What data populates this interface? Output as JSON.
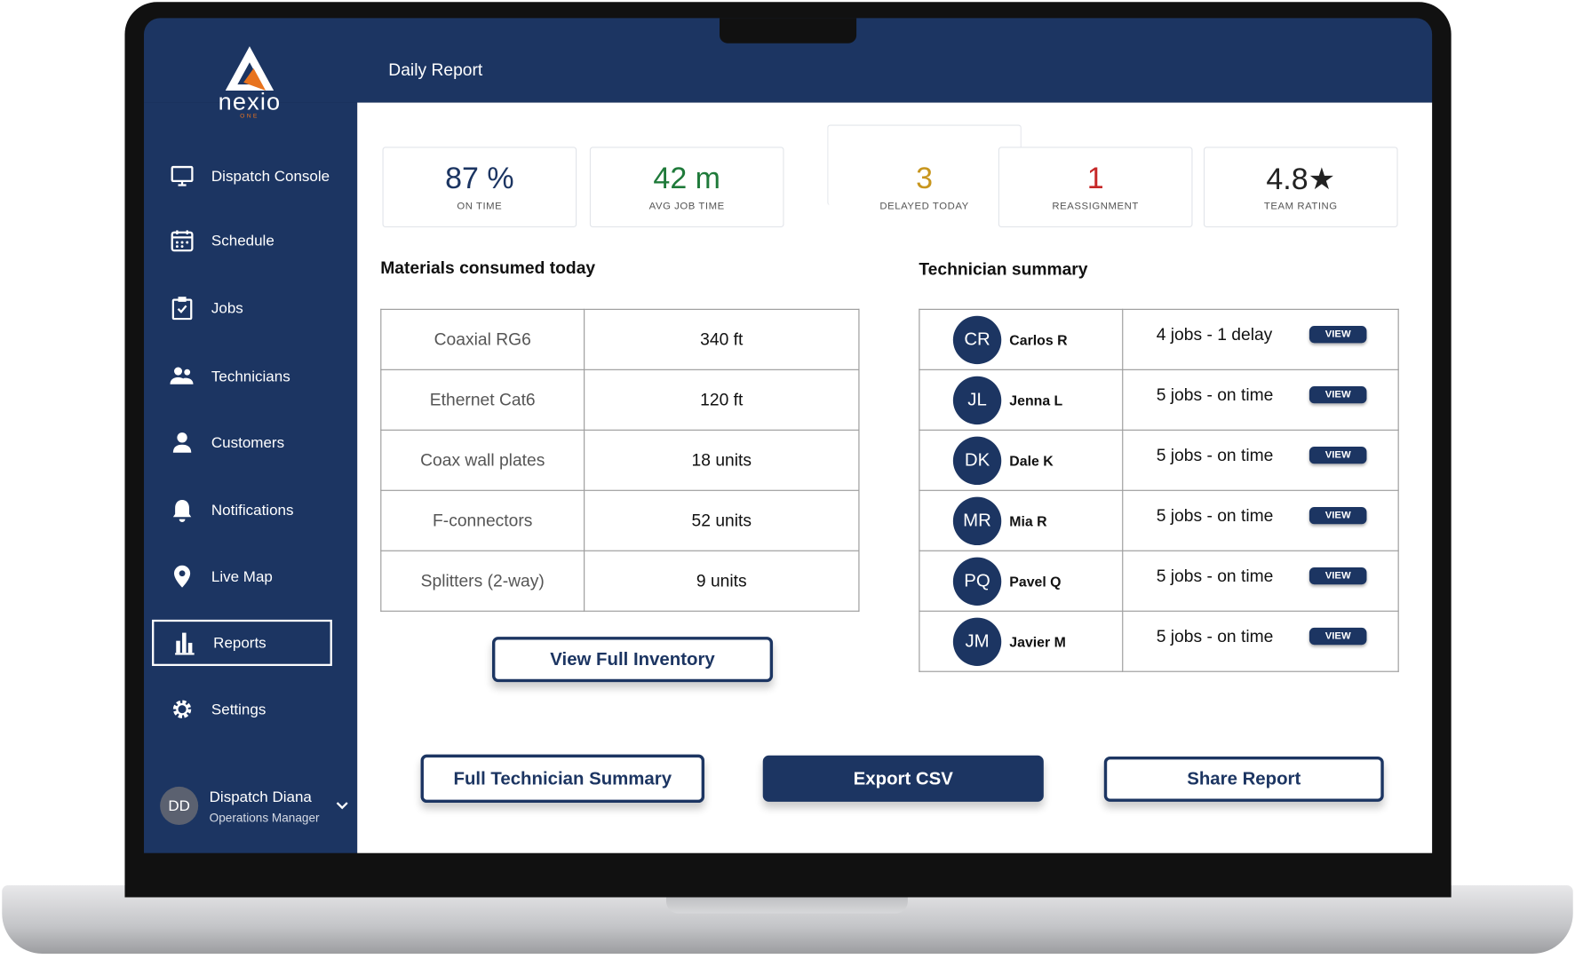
{
  "header": {
    "title": "Daily Report"
  },
  "logo": {
    "name": "nexio",
    "tagline": "ONE"
  },
  "nav": [
    "Dispatch Console",
    "Schedule",
    "Jobs",
    "Technicians",
    "Customers",
    "Notifications",
    "Live Map",
    "Reports",
    "Settings"
  ],
  "user": {
    "initials": "DD",
    "name": "Dispatch Diana",
    "role": "Operations Manager"
  },
  "kpis": [
    {
      "value": "87 %",
      "label": "ON TIME"
    },
    {
      "value": "42 m",
      "label": "AVG JOB TIME"
    },
    {
      "value": "3",
      "label": "DELAYED TODAY"
    },
    {
      "value": "1",
      "label": "REASSIGNMENT"
    },
    {
      "value": "4.8★",
      "label": "TEAM RATING"
    }
  ],
  "materials": {
    "title": "Materials consumed today",
    "rows": [
      [
        "Coaxial RG6",
        "340 ft"
      ],
      [
        "Ethernet Cat6",
        "120 ft"
      ],
      [
        "Coax wall plates",
        "18 units"
      ],
      [
        "F-connectors",
        "52 units"
      ],
      [
        "Splitters (2-way)",
        "9 units"
      ]
    ],
    "button": "View Full Inventory"
  },
  "technicians": {
    "title": "Technician summary",
    "rows": [
      {
        "initials": "CR",
        "name": "Carlos R",
        "status": "4 jobs - 1 delay",
        "action": "VIEW"
      },
      {
        "initials": "JL",
        "name": "Jenna L",
        "status": "5 jobs - on time",
        "action": "VIEW"
      },
      {
        "initials": "DK",
        "name": "Dale K",
        "status": "5 jobs - on time",
        "action": "VIEW"
      },
      {
        "initials": "MR",
        "name": "Mia R",
        "status": "5 jobs - on time",
        "action": "VIEW"
      },
      {
        "initials": "PQ",
        "name": "Pavel Q",
        "status": "5 jobs - on time",
        "action": "VIEW"
      },
      {
        "initials": "JM",
        "name": "Javier M",
        "status": "5 jobs - on time",
        "action": "VIEW"
      }
    ]
  },
  "actions": [
    "Full Technician Summary",
    "Export CSV",
    "Share Report"
  ]
}
